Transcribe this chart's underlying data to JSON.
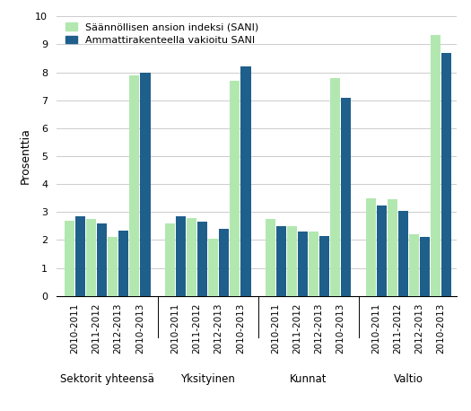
{
  "ylabel": "Prosenttia",
  "ylim": [
    0,
    10
  ],
  "yticks": [
    0,
    1,
    2,
    3,
    4,
    5,
    6,
    7,
    8,
    9,
    10
  ],
  "sectors": [
    "Sektorit yhteensä",
    "Yksityinen",
    "Kunnat",
    "Valtio"
  ],
  "periods": [
    "2010-2011",
    "2011-2012",
    "2012-2013",
    "2010-2013"
  ],
  "sani_values": [
    [
      2.7,
      2.75,
      2.1,
      7.9
    ],
    [
      2.6,
      2.8,
      2.05,
      7.7
    ],
    [
      2.75,
      2.5,
      2.3,
      7.8
    ],
    [
      3.5,
      3.45,
      2.2,
      9.35
    ]
  ],
  "vakioitu_values": [
    [
      2.85,
      2.6,
      2.35,
      8.0
    ],
    [
      2.85,
      2.65,
      2.4,
      8.2
    ],
    [
      2.5,
      2.3,
      2.15,
      7.1
    ],
    [
      3.25,
      3.05,
      2.1,
      8.7
    ]
  ],
  "sani_color": "#b2e8b0",
  "vakioitu_color": "#1f5f8b",
  "legend_sani": "Säännöllisen ansion indeksi (SANI)",
  "legend_vakioitu": "Ammattirakenteella vakioitu SANI",
  "bar_width": 0.38,
  "figsize": [
    5.25,
    4.58
  ],
  "dpi": 100
}
